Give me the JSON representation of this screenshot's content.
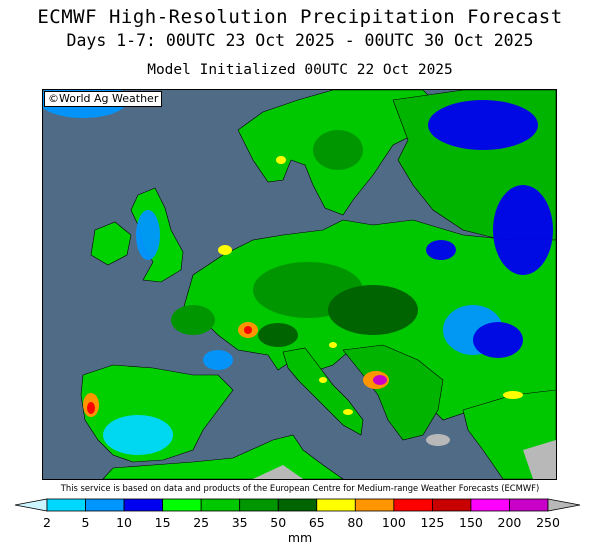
{
  "header": {
    "title": "ECMWF High-Resolution Precipitation Forecast",
    "period": "Days 1-7: 00UTC 23 Oct 2025 - 00UTC 30 Oct 2025",
    "initialized": "Model Initialized 00UTC 22 Oct 2025"
  },
  "map": {
    "region": "Europe",
    "copyright": "©World Ag Weather",
    "ocean_color": "#4f6b86",
    "regions": [
      {
        "name": "iceland-scandinavia",
        "band": "25-35"
      },
      {
        "name": "central-europe",
        "band": "35-50"
      },
      {
        "name": "balkans-adriatic",
        "band": "125-150"
      },
      {
        "name": "portugal-west",
        "band": "80-125"
      },
      {
        "name": "alps-west",
        "band": "65-100"
      }
    ]
  },
  "credit": "This service is based on data and products of the European Centre for Medium-range Weather Forecasts (ECMWF)",
  "legend": {
    "unit": "mm",
    "ticks": [
      "2",
      "5",
      "10",
      "15",
      "25",
      "35",
      "50",
      "65",
      "80",
      "100",
      "125",
      "150",
      "200",
      "250"
    ],
    "colors": [
      "#ccf5ff",
      "#00d8ff",
      "#0096ff",
      "#0000f0",
      "#00ff00",
      "#00c800",
      "#009600",
      "#006400",
      "#ffff00",
      "#ff9600",
      "#ff0000",
      "#c80000",
      "#ff00ff",
      "#c800c8",
      "#b8b8b8"
    ]
  }
}
